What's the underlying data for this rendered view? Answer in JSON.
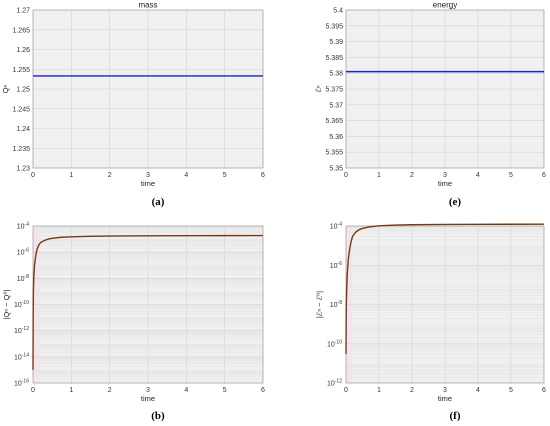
{
  "chart_data": [
    {
      "id": "a",
      "type": "line",
      "title": "mass",
      "xlabel": "time",
      "ylabel": "Qⁿ",
      "caption": "(a)",
      "xlim": [
        0,
        6
      ],
      "ylim": [
        1.23,
        1.27
      ],
      "scale": "linear",
      "xticks": [
        "0",
        "1",
        "2",
        "3",
        "4",
        "5",
        "6"
      ],
      "yticks": [
        "1.23",
        "1.235",
        "1.24",
        "1.245",
        "1.25",
        "1.255",
        "1.26",
        "1.265",
        "1.27"
      ],
      "grid": true,
      "series": [
        {
          "color": "#1f1fcf",
          "x": [
            0,
            6
          ],
          "y": [
            1.2533,
            1.2533
          ]
        }
      ]
    },
    {
      "id": "e",
      "type": "line",
      "title": "energy",
      "xlabel": "time",
      "ylabel": "ℰⁿ",
      "caption": "(e)",
      "xlim": [
        0,
        6
      ],
      "ylim": [
        5.35,
        5.4
      ],
      "scale": "linear",
      "xticks": [
        "0",
        "1",
        "2",
        "3",
        "4",
        "5",
        "6"
      ],
      "yticks": [
        "5.35",
        "5.355",
        "5.36",
        "5.365",
        "5.37",
        "5.375",
        "5.38",
        "5.385",
        "5.39",
        "5.395",
        "5.4"
      ],
      "grid": true,
      "series": [
        {
          "color": "#1f1fcf",
          "x": [
            0,
            6
          ],
          "y": [
            5.3805,
            5.3805
          ]
        }
      ]
    },
    {
      "id": "b",
      "type": "line",
      "title": "",
      "xlabel": "time",
      "ylabel": "|Qⁿ − Q⁰|",
      "caption": "(b)",
      "xlim": [
        0,
        6
      ],
      "ylim": [
        1e-16,
        0.0001
      ],
      "scale": "log",
      "xticks": [
        "0",
        "1",
        "2",
        "3",
        "4",
        "5",
        "6"
      ],
      "yticks": [
        {
          "base": "10",
          "exp": "-16"
        },
        {
          "base": "10",
          "exp": "-14"
        },
        {
          "base": "10",
          "exp": "-12"
        },
        {
          "base": "10",
          "exp": "-10"
        },
        {
          "base": "10",
          "exp": "-8"
        },
        {
          "base": "10",
          "exp": "-6"
        },
        {
          "base": "10",
          "exp": "-4"
        }
      ],
      "grid": true,
      "series": [
        {
          "color": "#7a3a10",
          "x": [
            0.0,
            0.005,
            0.01,
            0.02,
            0.04,
            0.07,
            0.1,
            0.15,
            0.2,
            0.3,
            0.4,
            0.5,
            0.7,
            1.0,
            1.5,
            2.0,
            3.0,
            4.0,
            5.0,
            6.0
          ],
          "y": [
            1e-15,
            1e-11,
            1e-09,
            1e-08,
            1e-07,
            5e-07,
            1.5e-06,
            3.5e-06,
            5.5e-06,
            8e-06,
            1e-05,
            1.15e-05,
            1.35e-05,
            1.5e-05,
            1.62e-05,
            1.7e-05,
            1.78e-05,
            1.82e-05,
            1.84e-05,
            1.86e-05
          ]
        }
      ]
    },
    {
      "id": "f",
      "type": "line",
      "title": "",
      "xlabel": "time",
      "ylabel": "|ℰⁿ − ℰ⁰|",
      "caption": "(f)",
      "xlim": [
        0,
        6
      ],
      "ylim": [
        1e-12,
        0.0001
      ],
      "scale": "log",
      "xticks": [
        "0",
        "1",
        "2",
        "3",
        "4",
        "5",
        "6"
      ],
      "yticks": [
        {
          "base": "10",
          "exp": "-12"
        },
        {
          "base": "10",
          "exp": "-10"
        },
        {
          "base": "10",
          "exp": "-8"
        },
        {
          "base": "10",
          "exp": "-6"
        },
        {
          "base": "10",
          "exp": "-4"
        }
      ],
      "grid": true,
      "series": [
        {
          "color": "#7a3a10",
          "x": [
            0.0,
            0.005,
            0.01,
            0.02,
            0.04,
            0.07,
            0.1,
            0.15,
            0.2,
            0.3,
            0.4,
            0.5,
            0.7,
            1.0,
            1.5,
            2.0,
            3.0,
            4.0,
            5.0,
            6.0
          ],
          "y": [
            3e-11,
            1e-09,
            1e-08,
            5e-08,
            4e-07,
            2e-06,
            5e-06,
            1.5e-05,
            3e-05,
            5e-05,
            6.5e-05,
            7.5e-05,
            9e-05,
            0.000102,
            0.000112,
            0.000117,
            0.00012,
            0.000122,
            0.000123,
            0.000124
          ]
        }
      ]
    }
  ]
}
